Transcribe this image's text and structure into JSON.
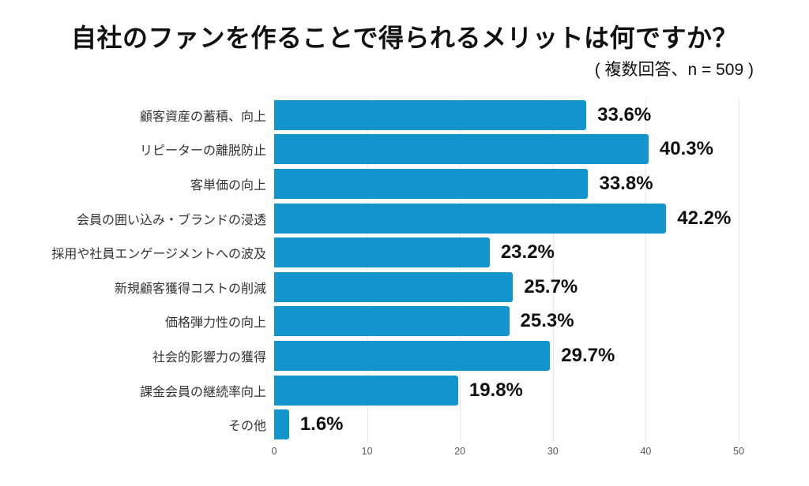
{
  "title": "自社のファンを作ることで得られるメリットは何ですか？",
  "subtitle": "( 複数回答、n = 509 )",
  "chart_data": {
    "type": "bar",
    "orientation": "horizontal",
    "title": "自社のファンを作ることで得られるメリットは何ですか？",
    "subtitle": "( 複数回答、n = 509 )",
    "sample_size": 509,
    "categories": [
      "顧客資産の蓄積、向上",
      "リピーターの離脱防止",
      "客単価の向上",
      "会員の囲い込み・ブランドの浸透",
      "採用や社員エンゲージメントへの波及",
      "新規顧客獲得コストの削減",
      "価格弾力性の向上",
      "社会的影響力の獲得",
      "課金会員の継続率向上",
      "その他"
    ],
    "values": [
      33.6,
      40.3,
      33.8,
      42.2,
      23.2,
      25.7,
      25.3,
      29.7,
      19.8,
      1.6
    ],
    "value_labels": [
      "33.6%",
      "40.3%",
      "33.8%",
      "42.2%",
      "23.2%",
      "25.7%",
      "25.3%",
      "29.7%",
      "19.8%",
      "1.6%"
    ],
    "xlabel": "",
    "ylabel": "",
    "xlim": [
      0,
      50
    ],
    "xticks": [
      "0",
      "10",
      "20",
      "30",
      "40",
      "50"
    ],
    "grid": "vertical-light",
    "legend": "none"
  },
  "colors": {
    "bar": "#1295cc",
    "grid": "#e7e7e7",
    "axis_text": "#595959",
    "title_text": "#111111",
    "category_text": "#333333",
    "value_text": "#111111",
    "background": "#ffffff"
  }
}
